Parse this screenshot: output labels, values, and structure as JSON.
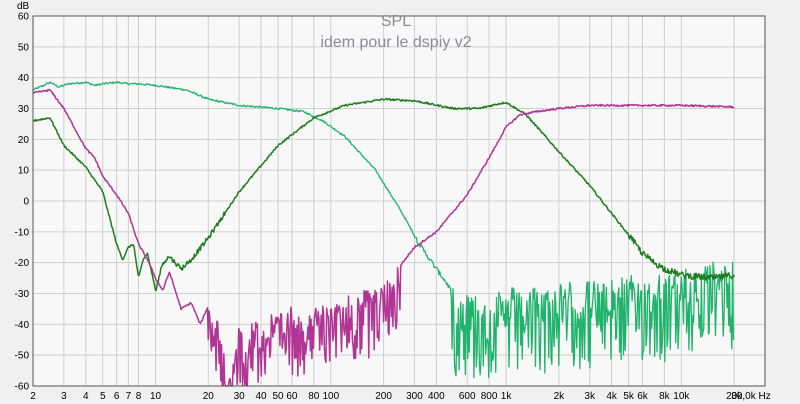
{
  "chart_data": {
    "type": "line",
    "title": "SPL",
    "subtitle": "idem pour le dspiy v2",
    "ylabel": "dB",
    "xlabel": "",
    "x_unit": "Hz",
    "x_scale": "log",
    "xlim": [
      2,
      30000
    ],
    "ylim": [
      -60,
      60
    ],
    "grid": true,
    "x_ticks": [
      {
        "v": 2,
        "label": "2"
      },
      {
        "v": 3,
        "label": "3"
      },
      {
        "v": 4,
        "label": "4"
      },
      {
        "v": 5,
        "label": "5"
      },
      {
        "v": 6,
        "label": "6"
      },
      {
        "v": 7,
        "label": "7"
      },
      {
        "v": 8,
        "label": "8"
      },
      {
        "v": 10,
        "label": "10"
      },
      {
        "v": 20,
        "label": "20"
      },
      {
        "v": 30,
        "label": "30"
      },
      {
        "v": 40,
        "label": "40"
      },
      {
        "v": 50,
        "label": "50"
      },
      {
        "v": 60,
        "label": "60"
      },
      {
        "v": 80,
        "label": "80"
      },
      {
        "v": 100,
        "label": "100"
      },
      {
        "v": 200,
        "label": "200"
      },
      {
        "v": 300,
        "label": "300"
      },
      {
        "v": 400,
        "label": "400"
      },
      {
        "v": 600,
        "label": "600"
      },
      {
        "v": 800,
        "label": "800"
      },
      {
        "v": 1000,
        "label": "1k"
      },
      {
        "v": 2000,
        "label": "2k"
      },
      {
        "v": 3000,
        "label": "3k"
      },
      {
        "v": 4000,
        "label": "4k"
      },
      {
        "v": 5000,
        "label": "5k"
      },
      {
        "v": 6000,
        "label": "6k"
      },
      {
        "v": 8000,
        "label": "8k"
      },
      {
        "v": 10000,
        "label": "10k"
      },
      {
        "v": 20000,
        "label": "20k"
      },
      {
        "v": 30000,
        "label": "30,0k Hz"
      }
    ],
    "y_ticks": [
      60,
      50,
      40,
      30,
      20,
      10,
      0,
      -10,
      -20,
      -30,
      -40,
      -50,
      -60
    ],
    "series": [
      {
        "color": "#1fb36b",
        "points": [
          [
            2,
            36
          ],
          [
            2.3,
            37.5
          ],
          [
            2.5,
            38.5
          ],
          [
            2.8,
            37
          ],
          [
            3.2,
            38
          ],
          [
            4,
            38.5
          ],
          [
            4.5,
            37.5
          ],
          [
            5,
            38
          ],
          [
            6,
            38.5
          ],
          [
            7,
            38
          ],
          [
            8,
            38
          ],
          [
            10,
            37.5
          ],
          [
            15,
            36
          ],
          [
            20,
            33
          ],
          [
            30,
            31
          ],
          [
            50,
            30
          ],
          [
            70,
            29
          ],
          [
            90,
            26
          ],
          [
            120,
            21
          ],
          [
            180,
            10
          ],
          [
            250,
            -3
          ],
          [
            320,
            -14
          ],
          [
            400,
            -22
          ],
          [
            450,
            -26
          ],
          [
            500,
            -30
          ],
          [
            550,
            -32
          ],
          [
            700,
            -33
          ],
          [
            1000,
            -32
          ],
          [
            2000,
            -30
          ],
          [
            5000,
            -28
          ],
          [
            10000,
            -26
          ],
          [
            20000,
            -22
          ]
        ]
      },
      {
        "color": "#1e7d1e",
        "points": [
          [
            2,
            26
          ],
          [
            2.5,
            27
          ],
          [
            3,
            18
          ],
          [
            4,
            11
          ],
          [
            5,
            3
          ],
          [
            6,
            -14
          ],
          [
            6.5,
            -19
          ],
          [
            7,
            -15
          ],
          [
            7.5,
            -14
          ],
          [
            8,
            -25
          ],
          [
            8.5,
            -19
          ],
          [
            9,
            -17
          ],
          [
            10,
            -29
          ],
          [
            11,
            -20
          ],
          [
            12,
            -18
          ],
          [
            14,
            -22
          ],
          [
            16,
            -19
          ],
          [
            20,
            -12
          ],
          [
            30,
            3
          ],
          [
            50,
            18
          ],
          [
            80,
            27
          ],
          [
            120,
            31
          ],
          [
            200,
            33
          ],
          [
            300,
            32.5
          ],
          [
            500,
            30
          ],
          [
            700,
            30
          ],
          [
            900,
            31.5
          ],
          [
            1000,
            32
          ],
          [
            1300,
            28
          ],
          [
            2000,
            16
          ],
          [
            3000,
            5
          ],
          [
            4000,
            -4
          ],
          [
            5000,
            -11
          ],
          [
            6000,
            -17
          ],
          [
            7000,
            -20
          ],
          [
            8000,
            -22
          ],
          [
            10000,
            -24
          ],
          [
            15000,
            -25
          ],
          [
            20000,
            -24
          ]
        ]
      },
      {
        "color": "#b03594",
        "points": [
          [
            2,
            35
          ],
          [
            2.5,
            36
          ],
          [
            3,
            30
          ],
          [
            4,
            17
          ],
          [
            4.5,
            14
          ],
          [
            5,
            8
          ],
          [
            6,
            2
          ],
          [
            7,
            -4
          ],
          [
            8,
            -14
          ],
          [
            9,
            -19
          ],
          [
            10,
            -25
          ],
          [
            11,
            -29
          ],
          [
            12,
            -23
          ],
          [
            14,
            -35
          ],
          [
            16,
            -33
          ],
          [
            18,
            -40
          ],
          [
            20,
            -34
          ],
          [
            24,
            -44
          ],
          [
            26,
            -60
          ],
          [
            30,
            -42
          ],
          [
            40,
            -40
          ],
          [
            60,
            -36
          ],
          [
            80,
            -37
          ],
          [
            100,
            -34
          ],
          [
            150,
            -31
          ],
          [
            200,
            -28
          ],
          [
            300,
            -15
          ],
          [
            400,
            -10
          ],
          [
            600,
            2
          ],
          [
            800,
            14
          ],
          [
            1000,
            24
          ],
          [
            1200,
            28
          ],
          [
            1500,
            29
          ],
          [
            2000,
            30
          ],
          [
            3000,
            31
          ],
          [
            5000,
            31
          ],
          [
            10000,
            31
          ],
          [
            20000,
            30.5
          ]
        ]
      }
    ]
  }
}
